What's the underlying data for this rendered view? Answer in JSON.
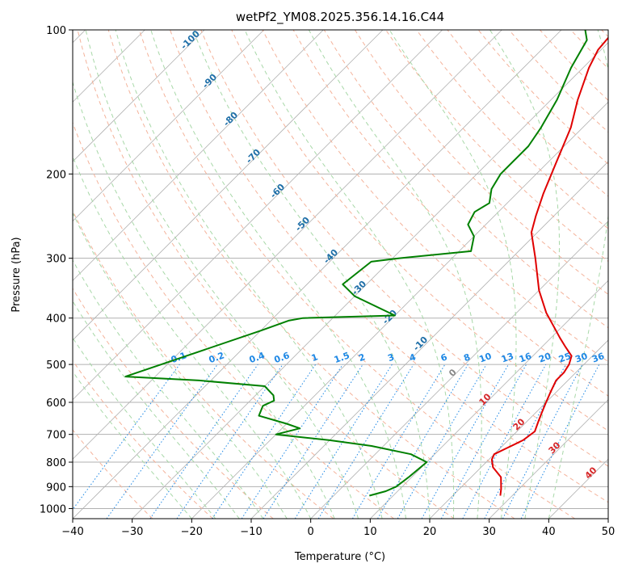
{
  "chart_data": {
    "type": "line",
    "title": "wetPf2_YM08.2025.356.14.16.C44",
    "xlabel": "Temperature (°C)",
    "ylabel": "Pressure (hPa)",
    "xlim": [
      -40,
      50
    ],
    "ylim": [
      1050,
      100
    ],
    "y_scale": "log",
    "x_ticks": [
      -40,
      -30,
      -20,
      -10,
      0,
      10,
      20,
      30,
      40,
      50
    ],
    "y_ticks": [
      100,
      200,
      300,
      400,
      500,
      600,
      700,
      800,
      900,
      1000
    ],
    "grid": true,
    "series": [
      {
        "role": "temperature",
        "color": "#e00000",
        "points": [
          [
            28.0,
            940
          ],
          [
            27.0,
            910
          ],
          [
            25.0,
            860
          ],
          [
            22.0,
            820
          ],
          [
            20.5,
            790
          ],
          [
            20.0,
            770
          ],
          [
            21.0,
            750
          ],
          [
            22.5,
            720
          ],
          [
            23.0,
            690
          ],
          [
            22.0,
            660
          ],
          [
            21.0,
            630
          ],
          [
            20.0,
            600
          ],
          [
            19.0,
            570
          ],
          [
            18.0,
            540
          ],
          [
            18.0,
            520
          ],
          [
            17.5,
            500
          ],
          [
            16.5,
            480
          ],
          [
            14.0,
            460
          ],
          [
            11.5,
            440
          ],
          [
            9.0,
            420
          ],
          [
            5.0,
            390
          ],
          [
            0.0,
            350
          ],
          [
            -6.0,
            300
          ],
          [
            -11.0,
            265
          ],
          [
            -13.0,
            245
          ],
          [
            -15.5,
            220
          ],
          [
            -18.5,
            190
          ],
          [
            -22.0,
            160
          ],
          [
            -25.5,
            140
          ],
          [
            -29.0,
            120
          ],
          [
            -30.5,
            110
          ],
          [
            -31.0,
            100
          ]
        ]
      },
      {
        "role": "dewpoint",
        "color": "#008000",
        "points": [
          [
            6.0,
            940
          ],
          [
            8.0,
            920
          ],
          [
            9.0,
            900
          ],
          [
            9.5,
            860
          ],
          [
            10.0,
            800
          ],
          [
            6.0,
            770
          ],
          [
            -2.0,
            740
          ],
          [
            -10.0,
            720
          ],
          [
            -20.0,
            700
          ],
          [
            -17.0,
            680
          ],
          [
            -20.0,
            665
          ],
          [
            -26.0,
            640
          ],
          [
            -27.0,
            610
          ],
          [
            -26.0,
            595
          ],
          [
            -27.0,
            580
          ],
          [
            -30.0,
            555
          ],
          [
            -42.0,
            540
          ],
          [
            -55.0,
            530
          ],
          [
            -40.0,
            425
          ],
          [
            -37.0,
            405
          ],
          [
            -35.0,
            400
          ],
          [
            -20.0,
            395
          ],
          [
            -30.0,
            360
          ],
          [
            -34.0,
            340
          ],
          [
            -33.0,
            305
          ],
          [
            -29.0,
            300
          ],
          [
            -18.0,
            290
          ],
          [
            -20.0,
            270
          ],
          [
            -23.0,
            255
          ],
          [
            -24.0,
            240
          ],
          [
            -23.0,
            230
          ],
          [
            -25.0,
            215
          ],
          [
            -26.0,
            200
          ],
          [
            -26.0,
            185
          ],
          [
            -26.0,
            175
          ],
          [
            -27.0,
            160
          ],
          [
            -29.0,
            140
          ],
          [
            -32.0,
            120
          ],
          [
            -34.0,
            105
          ],
          [
            -36.0,
            100
          ]
        ]
      }
    ],
    "dry_adiabat_labels": [
      "-100",
      "-90",
      "-80",
      "-70",
      "-60",
      "-50",
      "-40",
      "-30",
      "-20",
      "-10"
    ],
    "moist_adiabat_labels": [
      "0",
      "10",
      "20",
      "30",
      "40"
    ],
    "mixing_ratio_labels": [
      "0.1",
      "0.2",
      "0.4",
      "0.6",
      "1",
      "1.5",
      "2",
      "3",
      "4",
      "6",
      "8",
      "10",
      "13",
      "16",
      "20",
      "25",
      "30",
      "36"
    ],
    "colors": {
      "isotherm": "#b0b0b0",
      "isobar": "#b0b0b0",
      "dry_adiabat": "#f4b39b",
      "moist_adiabat": "#a8d8a8",
      "mixing_ratio": "#1e88e5",
      "dry_label": "#1f6fa8",
      "moist_label": "#d62728",
      "mixing_label": "#1e88e5"
    }
  }
}
